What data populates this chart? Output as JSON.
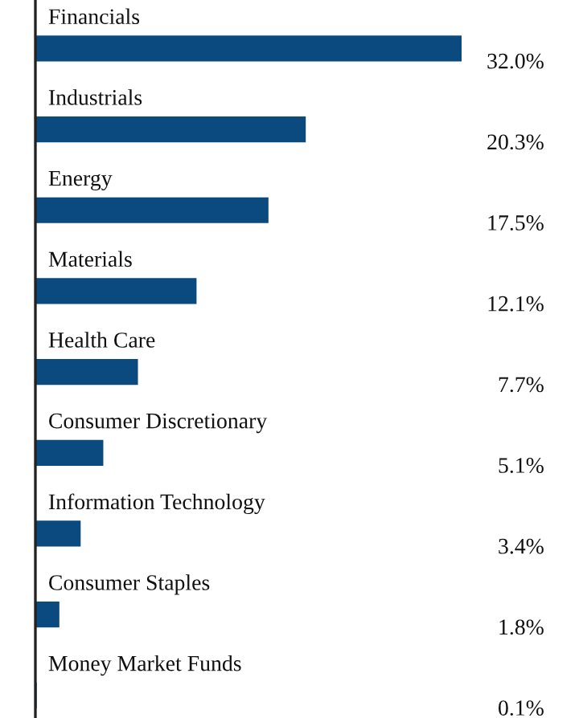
{
  "chart_data": {
    "type": "bar",
    "orientation": "horizontal",
    "categories": [
      "Financials",
      "Industrials",
      "Energy",
      "Materials",
      "Health Care",
      "Consumer Discretionary",
      "Information Technology",
      "Consumer Staples",
      "Money Market Funds"
    ],
    "values": [
      32.0,
      20.3,
      17.5,
      12.1,
      7.7,
      5.1,
      3.4,
      1.8,
      0.1
    ],
    "value_labels": [
      "32.0%",
      "20.3%",
      "17.5%",
      "12.1%",
      "7.7%",
      "5.1%",
      "3.4%",
      "1.8%",
      "0.1%"
    ],
    "color": "#0b4a7e"
  }
}
